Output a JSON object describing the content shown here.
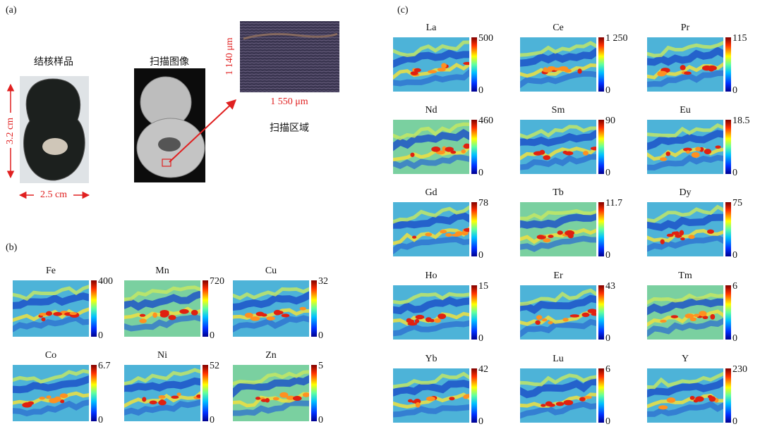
{
  "panel_a": {
    "label": "(a)",
    "sample_title": "结核样品",
    "scan_title": "扫描图像",
    "region_title": "扫描区域",
    "height_dim": "3.2 cm",
    "width_dim": "2.5 cm",
    "region_height": "1 140 μm",
    "region_width": "1 550 μm"
  },
  "panel_b": {
    "label": "(b)",
    "maps": [
      {
        "element": "Fe",
        "max": "400",
        "min": "0"
      },
      {
        "element": "Mn",
        "max": "720",
        "min": "0"
      },
      {
        "element": "Cu",
        "max": "32",
        "min": "0"
      },
      {
        "element": "Co",
        "max": "6.7",
        "min": "0"
      },
      {
        "element": "Ni",
        "max": "52",
        "min": "0"
      },
      {
        "element": "Zn",
        "max": "5",
        "min": "0"
      }
    ]
  },
  "panel_c": {
    "label": "(c)",
    "maps": [
      {
        "element": "La",
        "max": "500",
        "min": "0"
      },
      {
        "element": "Ce",
        "max": "1 250",
        "min": "0"
      },
      {
        "element": "Pr",
        "max": "115",
        "min": "0"
      },
      {
        "element": "Nd",
        "max": "460",
        "min": "0"
      },
      {
        "element": "Sm",
        "max": "90",
        "min": "0"
      },
      {
        "element": "Eu",
        "max": "18.5",
        "min": "0"
      },
      {
        "element": "Gd",
        "max": "78",
        "min": "0"
      },
      {
        "element": "Tb",
        "max": "11.7",
        "min": "0"
      },
      {
        "element": "Dy",
        "max": "75",
        "min": "0"
      },
      {
        "element": "Ho",
        "max": "15",
        "min": "0"
      },
      {
        "element": "Er",
        "max": "43",
        "min": "0"
      },
      {
        "element": "Tm",
        "max": "6",
        "min": "0"
      },
      {
        "element": "Yb",
        "max": "42",
        "min": "0"
      },
      {
        "element": "Lu",
        "max": "6",
        "min": "0"
      },
      {
        "element": "Y",
        "max": "230",
        "min": "0"
      }
    ]
  }
}
